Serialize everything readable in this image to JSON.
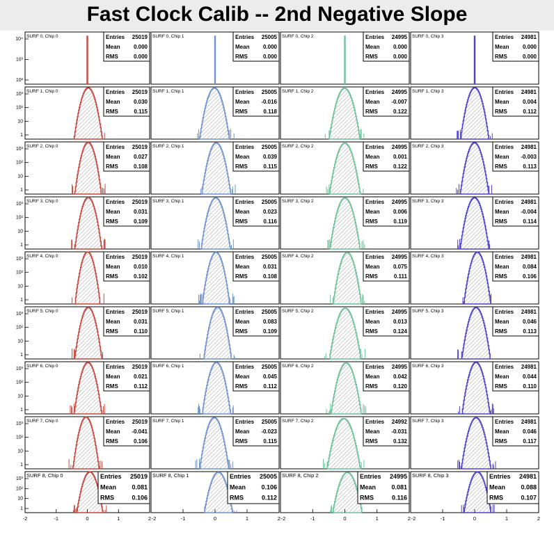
{
  "page": {
    "title": "Fast Clock Calib -- 2nd Negative Slope"
  },
  "stat_labels": {
    "entries": "Entries",
    "mean": "Mean",
    "rms": "RMS"
  },
  "colors": [
    "#c8473c",
    "#6f93cf",
    "#6cc198",
    "#4f42cf"
  ],
  "chart_data": {
    "type": "histogram-grid",
    "layout": {
      "rows": 9,
      "cols": 4
    },
    "x_range": [
      -2,
      2
    ],
    "x_ticks": [
      "-2",
      "-1",
      "0",
      "1",
      "2"
    ],
    "y_scale": "log",
    "y_ticks_row0": [
      "10⁴",
      "10³",
      "10²"
    ],
    "y_ticks": [
      "10³",
      "10²",
      "10",
      "1"
    ],
    "panels": [
      {
        "title": "SURF 0, Chip 0",
        "entries": "25019",
        "mean": "0.000",
        "rms": "0.000"
      },
      {
        "title": "SURF 0, Chip 1",
        "entries": "25005",
        "mean": "0.000",
        "rms": "0.000"
      },
      {
        "title": "SURF 0, Chip 2",
        "entries": "24995",
        "mean": "0.000",
        "rms": "0.000"
      },
      {
        "title": "SURF 0, Chip 3",
        "entries": "24981",
        "mean": "0.000",
        "rms": "0.000"
      },
      {
        "title": "SURF 1, Chip 0",
        "entries": "25019",
        "mean": "0.030",
        "rms": "0.115"
      },
      {
        "title": "SURF 1, Chip 1",
        "entries": "25005",
        "mean": "-0.016",
        "rms": "0.118"
      },
      {
        "title": "SURF 1, Chip 2",
        "entries": "24995",
        "mean": "-0.007",
        "rms": "0.122"
      },
      {
        "title": "SURF 1, Chip 3",
        "entries": "24981",
        "mean": "0.004",
        "rms": "0.112"
      },
      {
        "title": "SURF 2, Chip 0",
        "entries": "25019",
        "mean": "0.027",
        "rms": "0.108"
      },
      {
        "title": "SURF 2, Chip 1",
        "entries": "25005",
        "mean": "0.039",
        "rms": "0.115"
      },
      {
        "title": "SURF 2, Chip 2",
        "entries": "24995",
        "mean": "0.001",
        "rms": "0.122"
      },
      {
        "title": "SURF 2, Chip 3",
        "entries": "24981",
        "mean": "-0.003",
        "rms": "0.113"
      },
      {
        "title": "SURF 3, Chip 0",
        "entries": "25019",
        "mean": "0.031",
        "rms": "0.109"
      },
      {
        "title": "SURF 3, Chip 1",
        "entries": "25005",
        "mean": "0.023",
        "rms": "0.116"
      },
      {
        "title": "SURF 3, Chip 2",
        "entries": "24995",
        "mean": "0.006",
        "rms": "0.119"
      },
      {
        "title": "SURF 3, Chip 3",
        "entries": "24981",
        "mean": "-0.004",
        "rms": "0.114"
      },
      {
        "title": "SURF 4, Chip 0",
        "entries": "25019",
        "mean": "0.010",
        "rms": "0.102"
      },
      {
        "title": "SURF 4, Chip 1",
        "entries": "25005",
        "mean": "0.031",
        "rms": "0.108"
      },
      {
        "title": "SURF 4, Chip 2",
        "entries": "24995",
        "mean": "0.075",
        "rms": "0.111"
      },
      {
        "title": "SURF 4, Chip 3",
        "entries": "24981",
        "mean": "0.084",
        "rms": "0.106"
      },
      {
        "title": "SURF 5, Chip 0",
        "entries": "25019",
        "mean": "0.031",
        "rms": "0.110"
      },
      {
        "title": "SURF 5, Chip 1",
        "entries": "25005",
        "mean": "0.083",
        "rms": "0.109"
      },
      {
        "title": "SURF 5, Chip 2",
        "entries": "24995",
        "mean": "0.013",
        "rms": "0.124"
      },
      {
        "title": "SURF 5, Chip 3",
        "entries": "24981",
        "mean": "0.046",
        "rms": "0.113"
      },
      {
        "title": "SURF 6, Chip 0",
        "entries": "25019",
        "mean": "0.021",
        "rms": "0.112"
      },
      {
        "title": "SURF 6, Chip 1",
        "entries": "25005",
        "mean": "0.045",
        "rms": "0.112"
      },
      {
        "title": "SURF 6, Chip 2",
        "entries": "24995",
        "mean": "0.042",
        "rms": "0.120"
      },
      {
        "title": "SURF 6, Chip 3",
        "entries": "24981",
        "mean": "0.044",
        "rms": "0.110"
      },
      {
        "title": "SURF 7, Chip 0",
        "entries": "25019",
        "mean": "-0.041",
        "rms": "0.106"
      },
      {
        "title": "SURF 7, Chip 1",
        "entries": "25005",
        "mean": "-0.023",
        "rms": "0.115"
      },
      {
        "title": "SURF 7, Chip 2",
        "entries": "24992",
        "mean": "-0.031",
        "rms": "0.132"
      },
      {
        "title": "SURF 7, Chip 3",
        "entries": "24981",
        "mean": "0.046",
        "rms": "0.117"
      },
      {
        "title": "SURF 8, Chip 0",
        "entries": "25019",
        "mean": "0.081",
        "rms": "0.106"
      },
      {
        "title": "SURF 8, Chip 1",
        "entries": "25005",
        "mean": "0.106",
        "rms": "0.112"
      },
      {
        "title": "SURF 8, Chip 2",
        "entries": "24995",
        "mean": "0.081",
        "rms": "0.116"
      },
      {
        "title": "SURF 8, Chip 3",
        "entries": "24981",
        "mean": "0.088",
        "rms": "0.107"
      }
    ]
  }
}
